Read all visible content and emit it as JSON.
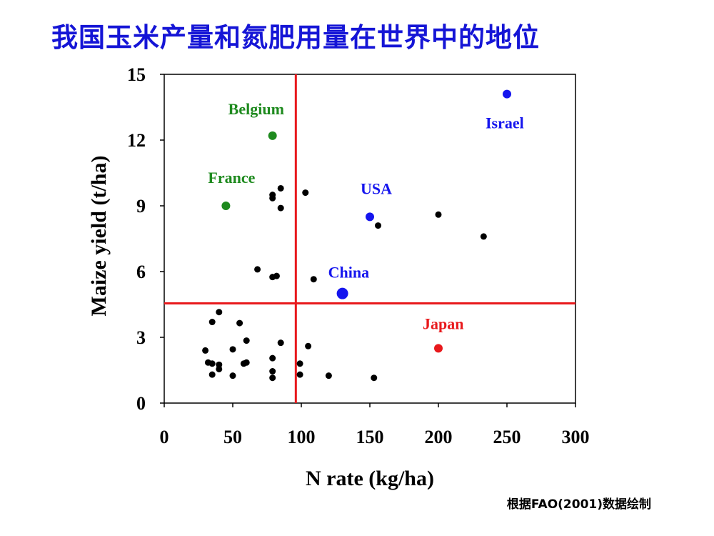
{
  "slide": {
    "title": "我国玉米产量和氮肥用量在世界中的地位",
    "source_note": "根据FAO(2001)数据绘制"
  },
  "chart_data": {
    "type": "scatter",
    "xlabel": "N rate (kg/ha)",
    "ylabel": "Maize yield (t/ha)",
    "xlim": [
      0,
      300
    ],
    "ylim": [
      0,
      15
    ],
    "x_ticks": [
      0,
      50,
      100,
      150,
      200,
      250,
      300
    ],
    "y_ticks": [
      0,
      3,
      6,
      9,
      12,
      15
    ],
    "grid": false,
    "reference_lines": {
      "vertical_x": 96,
      "horizontal_y": 4.55,
      "color": "#e8191c"
    },
    "highlighted": [
      {
        "label": "Belgium",
        "x": 79,
        "y": 12.2,
        "color": "#1e8a1e",
        "large": false
      },
      {
        "label": "France",
        "x": 45,
        "y": 9.0,
        "color": "#1e8a1e",
        "large": false
      },
      {
        "label": "Israel",
        "x": 250,
        "y": 14.1,
        "color": "#1515ee",
        "large": false
      },
      {
        "label": "USA",
        "x": 150,
        "y": 8.5,
        "color": "#1515ee",
        "large": false
      },
      {
        "label": "China",
        "x": 130,
        "y": 5.0,
        "color": "#1515ee",
        "large": true
      },
      {
        "label": "Japan",
        "x": 200,
        "y": 2.5,
        "color": "#e8191c",
        "large": false
      }
    ],
    "others": {
      "color": "#000000",
      "points": [
        [
          85,
          9.8
        ],
        [
          103,
          9.6
        ],
        [
          79,
          9.5
        ],
        [
          79,
          9.35
        ],
        [
          85,
          8.9
        ],
        [
          200,
          8.6
        ],
        [
          156,
          8.1
        ],
        [
          233,
          7.6
        ],
        [
          68,
          6.1
        ],
        [
          79,
          5.75
        ],
        [
          82,
          5.8
        ],
        [
          109,
          5.65
        ],
        [
          40,
          4.15
        ],
        [
          35,
          3.7
        ],
        [
          55,
          3.65
        ],
        [
          60,
          2.85
        ],
        [
          85,
          2.75
        ],
        [
          105,
          2.6
        ],
        [
          50,
          2.45
        ],
        [
          30,
          2.4
        ],
        [
          79,
          2.05
        ],
        [
          32,
          1.85
        ],
        [
          35,
          1.8
        ],
        [
          40,
          1.75
        ],
        [
          58,
          1.8
        ],
        [
          60,
          1.85
        ],
        [
          99,
          1.8
        ],
        [
          40,
          1.55
        ],
        [
          79,
          1.45
        ],
        [
          35,
          1.3
        ],
        [
          50,
          1.25
        ],
        [
          99,
          1.3
        ],
        [
          120,
          1.25
        ],
        [
          79,
          1.15
        ],
        [
          153,
          1.15
        ]
      ]
    }
  }
}
